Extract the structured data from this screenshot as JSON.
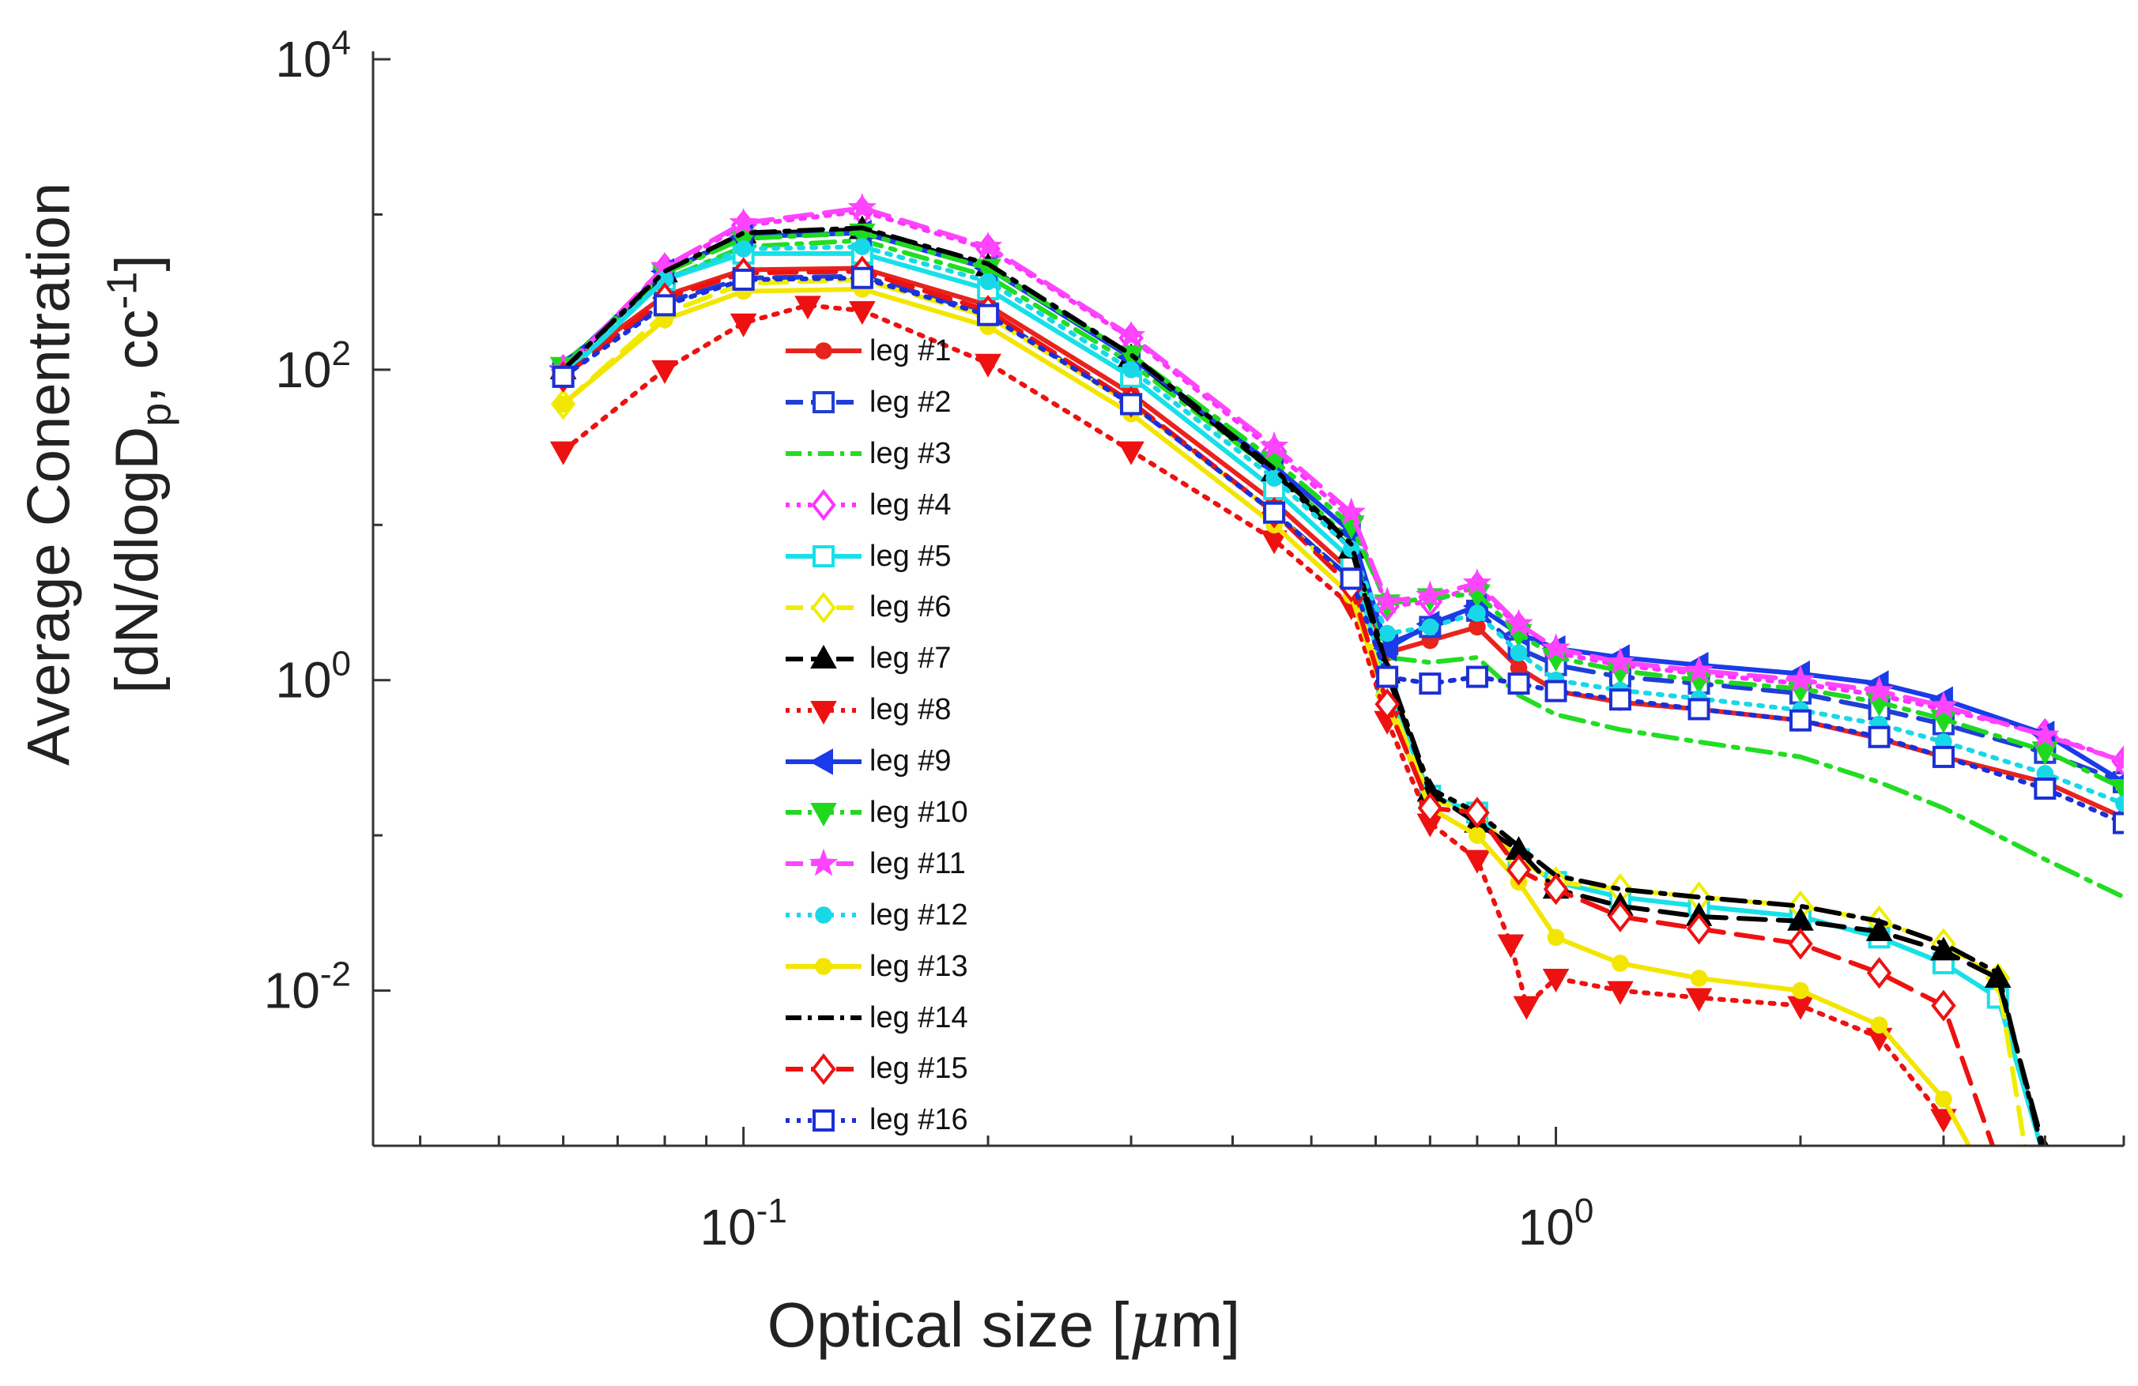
{
  "chart_data": {
    "type": "line",
    "title": "",
    "xlabel": "Optical size [",
    "xlabel_symbol": "μ",
    "xlabel_tail": "m]",
    "ylabel_line1": "Average Conentration",
    "ylabel_line2_a": "[dN/dlogD",
    "ylabel_line2_sub": "p",
    "ylabel_line2_b": ", cc",
    "ylabel_line2_sup": "-1",
    "ylabel_line2_c": "]",
    "x_scale": "log",
    "y_scale": "log",
    "xlim": [
      0.035,
      5.0
    ],
    "ylim": [
      0.001,
      10000
    ],
    "x_ticks": [
      {
        "base": "10",
        "exp": "-1",
        "value": 0.1
      },
      {
        "base": "10",
        "exp": "0",
        "value": 1
      }
    ],
    "y_ticks": [
      {
        "base": "10",
        "exp": "-2",
        "value": 0.01
      },
      {
        "base": "10",
        "exp": "0",
        "value": 1
      },
      {
        "base": "10",
        "exp": "2",
        "value": 100
      },
      {
        "base": "10",
        "exp": "4",
        "value": 10000
      }
    ],
    "grid": false,
    "legend_position": "center-left",
    "series": [
      {
        "name": "leg #1",
        "color": "#e8231e",
        "dash": "solid",
        "marker": "dot",
        "x": [
          0.06,
          0.08,
          0.1,
          0.14,
          0.2,
          0.3,
          0.45,
          0.56,
          0.62,
          0.7,
          0.8,
          0.9,
          1.0,
          1.2,
          1.5,
          2,
          2.5,
          3,
          4,
          5
        ],
        "y": [
          100,
          300,
          440,
          450,
          260,
          70,
          14,
          5,
          1.5,
          1.8,
          2.2,
          1.2,
          0.85,
          0.72,
          0.65,
          0.55,
          0.42,
          0.32,
          0.22,
          0.13
        ]
      },
      {
        "name": "leg #2",
        "color": "#1f3fd6",
        "dash": "dashed",
        "marker": "square",
        "x": [
          0.06,
          0.08,
          0.1,
          0.14,
          0.2,
          0.3,
          0.45,
          0.56,
          0.62,
          0.7,
          0.8,
          0.9,
          1.0,
          1.2,
          1.5,
          2,
          2.5,
          3,
          4,
          5
        ],
        "y": [
          95,
          270,
          390,
          400,
          230,
          60,
          12,
          4.5,
          1.7,
          2.2,
          2.8,
          1.6,
          1.25,
          1.05,
          0.95,
          0.82,
          0.65,
          0.52,
          0.34,
          0.22
        ]
      },
      {
        "name": "leg #3",
        "color": "#22dd22",
        "dash": "dashdot",
        "marker": "none",
        "x": [
          0.06,
          0.08,
          0.1,
          0.14,
          0.2,
          0.3,
          0.45,
          0.56,
          0.62,
          0.7,
          0.8,
          0.9,
          1.0,
          1.2,
          1.5,
          2,
          2.5,
          3,
          4,
          5
        ],
        "y": [
          110,
          380,
          620,
          680,
          400,
          110,
          22,
          8,
          1.4,
          1.3,
          1.4,
          0.8,
          0.6,
          0.48,
          0.4,
          0.32,
          0.22,
          0.15,
          0.07,
          0.04
        ]
      },
      {
        "name": "leg #4",
        "color": "#ff33ff",
        "dash": "dotted",
        "marker": "diamond",
        "x": [
          0.06,
          0.08,
          0.1,
          0.14,
          0.2,
          0.3,
          0.45,
          0.56,
          0.62,
          0.7,
          0.8,
          0.9,
          1.0,
          1.2,
          1.5,
          2,
          2.5,
          3,
          4,
          5
        ],
        "y": [
          100,
          450,
          850,
          1050,
          600,
          160,
          30,
          11,
          3,
          3.2,
          4,
          2.2,
          1.5,
          1.25,
          1.1,
          0.95,
          0.8,
          0.65,
          0.45,
          0.3
        ]
      },
      {
        "name": "leg #5",
        "color": "#18e0e8",
        "dash": "solid",
        "marker": "square",
        "x": [
          0.06,
          0.08,
          0.1,
          0.14,
          0.2,
          0.3,
          0.45,
          0.56,
          0.62,
          0.7,
          0.8,
          0.9,
          1.0,
          1.2,
          1.5,
          2,
          2.5,
          3,
          3.5,
          4
        ],
        "y": [
          90,
          380,
          560,
          560,
          330,
          90,
          17,
          6,
          0.9,
          0.18,
          0.14,
          0.07,
          0.05,
          0.04,
          0.035,
          0.03,
          0.022,
          0.015,
          0.009,
          0.0008
        ]
      },
      {
        "name": "leg #6",
        "color": "#eeee00",
        "dash": "dashed",
        "marker": "diamond",
        "x": [
          0.06,
          0.08,
          0.1,
          0.14,
          0.2,
          0.3,
          0.45,
          0.56,
          0.62,
          0.7,
          0.8,
          0.9,
          1.0,
          1.2,
          1.5,
          2,
          2.5,
          3,
          3.5,
          3.8
        ],
        "y": [
          60,
          230,
          360,
          380,
          220,
          60,
          12,
          4.2,
          0.8,
          0.17,
          0.14,
          0.07,
          0.05,
          0.045,
          0.04,
          0.035,
          0.028,
          0.02,
          0.012,
          0.0008
        ]
      },
      {
        "name": "leg #7",
        "color": "#000000",
        "dash": "dashed",
        "marker": "triangle-up",
        "x": [
          0.06,
          0.08,
          0.1,
          0.14,
          0.2,
          0.3,
          0.45,
          0.56,
          0.62,
          0.7,
          0.8,
          0.9,
          1.0,
          1.2,
          1.5,
          2,
          2.5,
          3,
          3.5,
          4
        ],
        "y": [
          100,
          420,
          750,
          800,
          460,
          120,
          22,
          7,
          1.1,
          0.19,
          0.12,
          0.08,
          0.045,
          0.035,
          0.03,
          0.028,
          0.024,
          0.018,
          0.012,
          0.0009
        ]
      },
      {
        "name": "leg #8",
        "color": "#ee1111",
        "dash": "dotted",
        "marker": "triangle-down",
        "x": [
          0.06,
          0.08,
          0.1,
          0.12,
          0.14,
          0.2,
          0.3,
          0.45,
          0.56,
          0.62,
          0.7,
          0.8,
          0.88,
          0.92,
          1.0,
          1.2,
          1.5,
          2,
          2.5,
          3
        ],
        "y": [
          30,
          100,
          200,
          260,
          240,
          110,
          30,
          8,
          3,
          0.55,
          0.12,
          0.07,
          0.02,
          0.008,
          0.012,
          0.01,
          0.009,
          0.008,
          0.005,
          0.0015
        ]
      },
      {
        "name": "leg #9",
        "color": "#1b3be8",
        "dash": "solid",
        "marker": "triangle-left",
        "x": [
          0.06,
          0.08,
          0.1,
          0.14,
          0.2,
          0.3,
          0.45,
          0.56,
          0.62,
          0.7,
          0.8,
          0.9,
          1.0,
          1.2,
          1.5,
          2,
          2.5,
          3,
          4,
          5
        ],
        "y": [
          105,
          430,
          720,
          760,
          450,
          120,
          24,
          9,
          1.6,
          2.3,
          3,
          2,
          1.6,
          1.4,
          1.25,
          1.1,
          0.95,
          0.75,
          0.45,
          0.22
        ]
      },
      {
        "name": "leg #10",
        "color": "#1fd91f",
        "dash": "dashdot",
        "marker": "triangle-down",
        "x": [
          0.06,
          0.08,
          0.1,
          0.14,
          0.2,
          0.3,
          0.45,
          0.56,
          0.62,
          0.7,
          0.8,
          0.9,
          1.0,
          1.2,
          1.5,
          2,
          2.5,
          3,
          4,
          5
        ],
        "y": [
          105,
          420,
          700,
          760,
          450,
          125,
          26,
          10,
          3.1,
          3.4,
          3.6,
          2,
          1.4,
          1.15,
          1.0,
          0.88,
          0.72,
          0.56,
          0.35,
          0.2
        ]
      },
      {
        "name": "leg #11",
        "color": "#ff44ff",
        "dash": "dashed",
        "marker": "star",
        "x": [
          0.06,
          0.08,
          0.1,
          0.14,
          0.2,
          0.3,
          0.45,
          0.56,
          0.62,
          0.7,
          0.8,
          0.9,
          1.0,
          1.2,
          1.5,
          2,
          2.5,
          3,
          4,
          5
        ],
        "y": [
          100,
          460,
          880,
          1100,
          620,
          165,
          32,
          12,
          3.2,
          3.5,
          4.2,
          2.3,
          1.6,
          1.3,
          1.15,
          1.0,
          0.85,
          0.68,
          0.44,
          0.3
        ]
      },
      {
        "name": "leg #12",
        "color": "#18d8e8",
        "dash": "dotted",
        "marker": "dot",
        "x": [
          0.06,
          0.08,
          0.1,
          0.14,
          0.2,
          0.3,
          0.45,
          0.56,
          0.62,
          0.7,
          0.8,
          0.9,
          1.0,
          1.2,
          1.5,
          2,
          2.5,
          3,
          4,
          5
        ],
        "y": [
          95,
          380,
          600,
          620,
          370,
          100,
          20,
          7,
          2,
          2.2,
          2.7,
          1.5,
          1.0,
          0.86,
          0.76,
          0.64,
          0.52,
          0.4,
          0.25,
          0.16
        ]
      },
      {
        "name": "leg #13",
        "color": "#f2e600",
        "dash": "solid",
        "marker": "dot",
        "x": [
          0.06,
          0.08,
          0.1,
          0.14,
          0.2,
          0.3,
          0.45,
          0.56,
          0.62,
          0.7,
          0.8,
          0.9,
          1.0,
          1.2,
          1.5,
          2,
          2.5,
          3,
          3.3
        ],
        "y": [
          60,
          210,
          320,
          330,
          190,
          52,
          10,
          3.5,
          0.7,
          0.15,
          0.1,
          0.05,
          0.022,
          0.015,
          0.012,
          0.01,
          0.006,
          0.002,
          0.0008
        ]
      },
      {
        "name": "leg #14",
        "color": "#000000",
        "dash": "dashdot",
        "marker": "none",
        "x": [
          0.06,
          0.08,
          0.1,
          0.14,
          0.2,
          0.3,
          0.45,
          0.56,
          0.62,
          0.7,
          0.8,
          0.9,
          1.0,
          1.2,
          1.5,
          2,
          2.5,
          3,
          3.5,
          4
        ],
        "y": [
          100,
          430,
          760,
          820,
          480,
          125,
          23,
          7.5,
          1.2,
          0.2,
          0.14,
          0.085,
          0.055,
          0.045,
          0.04,
          0.035,
          0.028,
          0.02,
          0.013,
          0.0008
        ]
      },
      {
        "name": "leg #15",
        "color": "#ee1111",
        "dash": "dashed",
        "marker": "diamond",
        "x": [
          0.06,
          0.08,
          0.1,
          0.14,
          0.2,
          0.3,
          0.45,
          0.56,
          0.62,
          0.7,
          0.8,
          0.9,
          1.0,
          1.2,
          1.5,
          2,
          2.5,
          3,
          3.5
        ],
        "y": [
          90,
          290,
          420,
          430,
          240,
          62,
          12,
          4,
          0.7,
          0.15,
          0.14,
          0.06,
          0.045,
          0.03,
          0.025,
          0.02,
          0.013,
          0.008,
          0.0008
        ]
      },
      {
        "name": "leg #16",
        "color": "#1b2fd6",
        "dash": "dotted",
        "marker": "square",
        "x": [
          0.06,
          0.08,
          0.1,
          0.14,
          0.2,
          0.3,
          0.45,
          0.56,
          0.62,
          0.7,
          0.8,
          0.9,
          1.0,
          1.2,
          1.5,
          2,
          2.5,
          3,
          4,
          5
        ],
        "y": [
          90,
          260,
          380,
          390,
          225,
          60,
          12,
          4.5,
          1.05,
          0.95,
          1.05,
          0.95,
          0.85,
          0.75,
          0.65,
          0.55,
          0.43,
          0.32,
          0.2,
          0.12
        ]
      }
    ]
  }
}
